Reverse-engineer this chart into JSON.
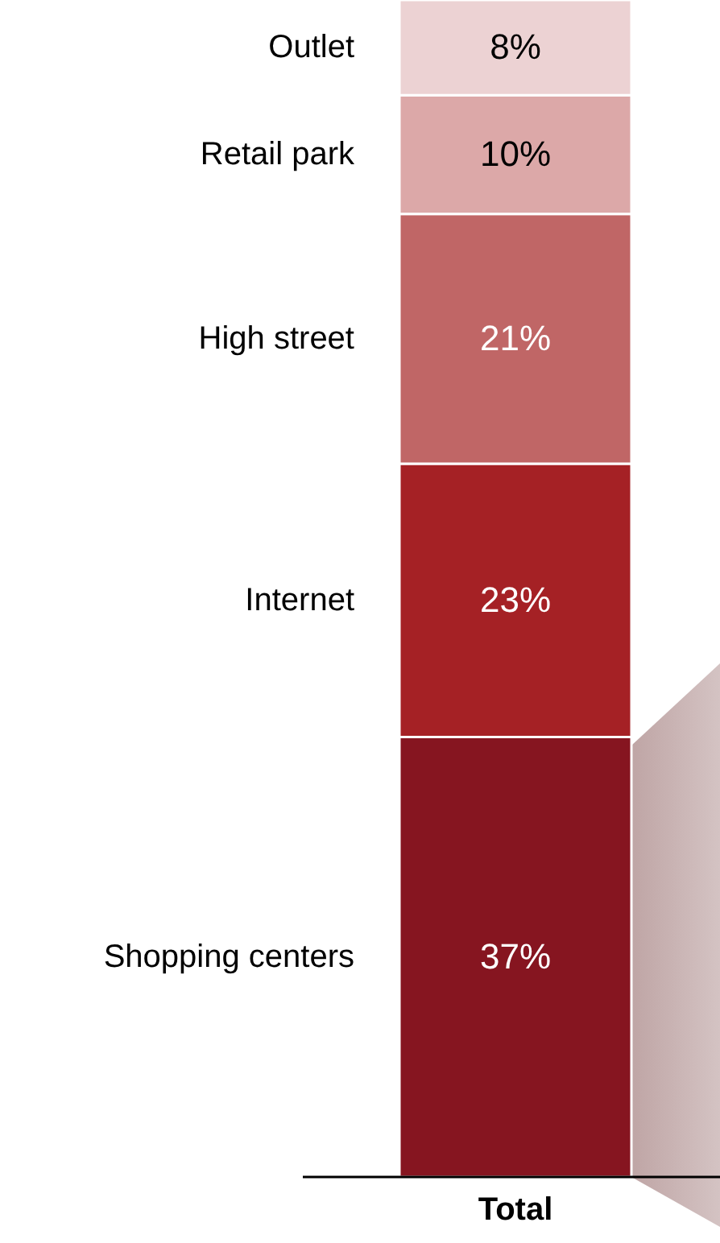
{
  "chart_data": {
    "type": "bar",
    "stacked": true,
    "categories": [
      "Total"
    ],
    "series": [
      {
        "name": "Shopping centers",
        "color": "#861520",
        "values": [
          37
        ],
        "value_labels": [
          "37%"
        ]
      },
      {
        "name": "Internet",
        "color": "#a52125",
        "values": [
          23
        ],
        "value_labels": [
          "23%"
        ]
      },
      {
        "name": "High street",
        "color": "#c06666",
        "values": [
          21
        ],
        "value_labels": [
          "21%"
        ]
      },
      {
        "name": "Retail park",
        "color": "#dca8a8",
        "values": [
          10
        ],
        "value_labels": [
          "10%"
        ]
      },
      {
        "name": "Outlet",
        "color": "#ecd2d3",
        "values": [
          8
        ],
        "value_labels": [
          "8%"
        ]
      }
    ]
  }
}
